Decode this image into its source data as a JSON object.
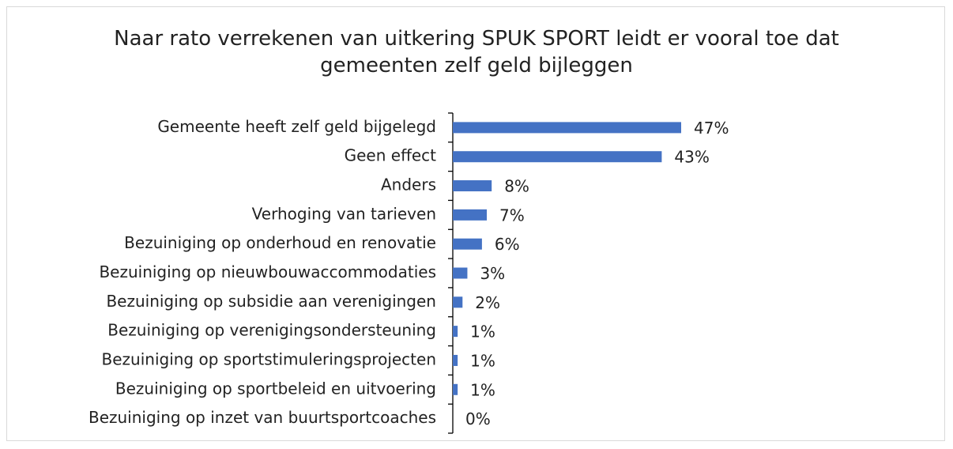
{
  "chart_data": {
    "type": "bar",
    "orientation": "horizontal",
    "title": "Naar rato verrekenen van uitkering SPUK SPORT leidt er vooral toe dat gemeenten zelf geld bijleggen",
    "categories": [
      "Gemeente heeft zelf geld bijgelegd",
      "Geen effect",
      "Anders",
      "Verhoging van tarieven",
      "Bezuiniging op onderhoud en renovatie",
      "Bezuiniging op nieuwbouwaccommodaties",
      "Bezuiniging op subsidie aan verenigingen",
      "Bezuiniging op verenigingsondersteuning",
      "Bezuiniging op sportstimuleringsprojecten",
      "Bezuiniging op sportbeleid en uitvoering",
      "Bezuiniging op inzet van buurtsportcoaches"
    ],
    "values": [
      47,
      43,
      8,
      7,
      6,
      3,
      2,
      1,
      1,
      1,
      0
    ],
    "value_labels": [
      "47%",
      "43%",
      "8%",
      "7%",
      "6%",
      "3%",
      "2%",
      "1%",
      "1%",
      "1%",
      "0%"
    ],
    "color": "#4472c4"
  }
}
